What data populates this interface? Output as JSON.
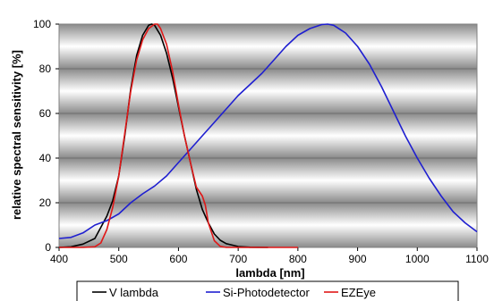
{
  "chart_data": {
    "type": "line",
    "title": "",
    "xlabel": "lambda [nm]",
    "ylabel": "relative spectral sensitivity [%]",
    "xlim": [
      400,
      1100
    ],
    "ylim": [
      0,
      100
    ],
    "x_ticks": [
      "400",
      "500",
      "600",
      "700",
      "800",
      "900",
      "1000",
      "1100"
    ],
    "y_ticks": [
      "0",
      "20",
      "40",
      "60",
      "80",
      "100"
    ],
    "grid": "horizontal",
    "legend_position": "bottom",
    "series": [
      {
        "name": "V lambda",
        "color": "#000000",
        "x": [
          400,
          420,
          440,
          460,
          480,
          490,
          500,
          510,
          520,
          530,
          540,
          550,
          555,
          560,
          570,
          580,
          590,
          600,
          610,
          620,
          630,
          640,
          650,
          660,
          670,
          680,
          700,
          720,
          750
        ],
        "y": [
          0,
          0.3,
          1.5,
          4,
          14,
          21,
          32,
          50,
          71,
          86,
          95,
          99.5,
          100,
          99.5,
          95,
          87,
          76,
          63,
          50,
          38,
          26,
          17,
          11,
          6,
          3.2,
          1.7,
          0.4,
          0.1,
          0
        ]
      },
      {
        "name": "Si-Photodetector",
        "color": "#1f1fd0",
        "x": [
          400,
          420,
          440,
          460,
          480,
          500,
          520,
          540,
          560,
          580,
          600,
          620,
          640,
          660,
          680,
          700,
          720,
          740,
          760,
          780,
          800,
          820,
          840,
          850,
          860,
          880,
          900,
          920,
          940,
          960,
          980,
          1000,
          1020,
          1040,
          1060,
          1080,
          1100
        ],
        "y": [
          4,
          4.5,
          6.5,
          10,
          12,
          15,
          20,
          24,
          27.5,
          32,
          38,
          44,
          50,
          56,
          62,
          68,
          73,
          78,
          84,
          90,
          95,
          98,
          99.8,
          100,
          99.5,
          96,
          90,
          82,
          72,
          61,
          50,
          40,
          31,
          23,
          16,
          11,
          7
        ]
      },
      {
        "name": "EZEye",
        "color": "#e01818",
        "x": [
          400,
          440,
          460,
          470,
          480,
          490,
          500,
          510,
          520,
          530,
          540,
          550,
          560,
          565,
          570,
          580,
          590,
          600,
          610,
          620,
          630,
          640,
          645,
          650,
          660,
          670,
          680,
          700,
          800
        ],
        "y": [
          0,
          0,
          0.3,
          2,
          8,
          18,
          32,
          51,
          70,
          84,
          93,
          98,
          100,
          100,
          98,
          91,
          79,
          64,
          50,
          38,
          27,
          23,
          19,
          11,
          3,
          0.5,
          0,
          0,
          0
        ]
      }
    ]
  }
}
